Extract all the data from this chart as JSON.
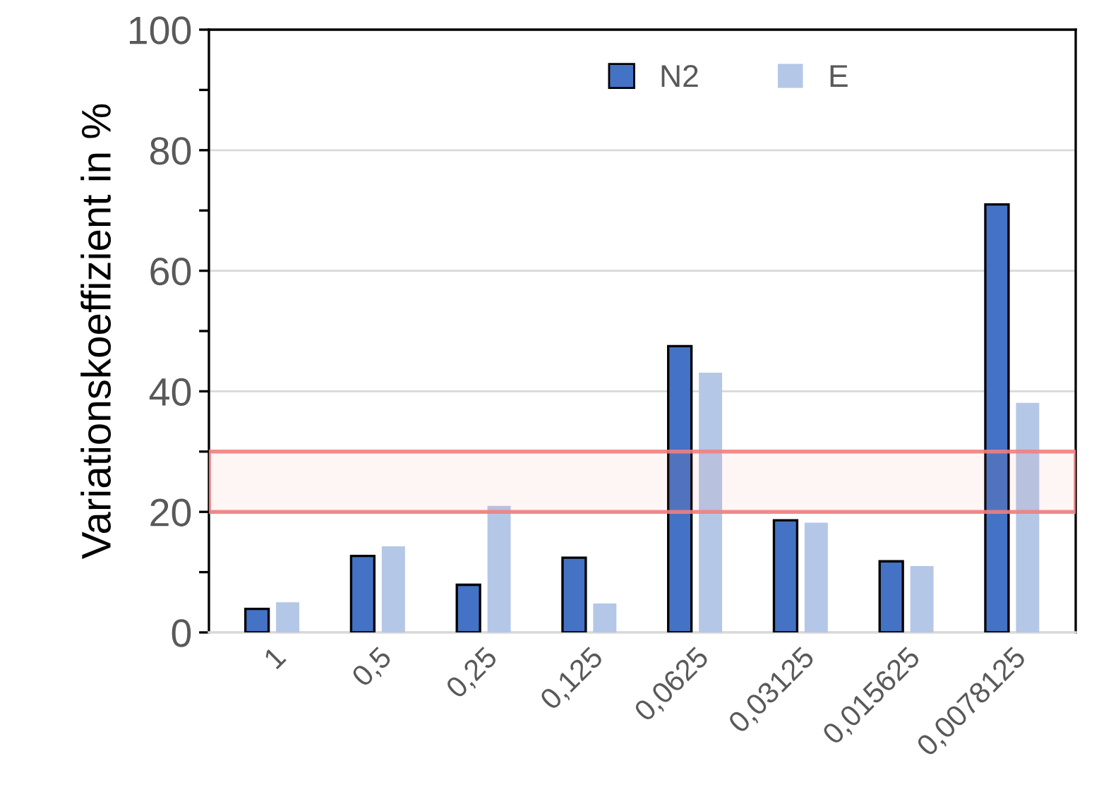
{
  "chart_data": {
    "type": "bar",
    "ylabel": "Variationskoeffizient in %",
    "categories": [
      "1",
      "0,5",
      "0,25",
      "0,125",
      "0,0625",
      "0,03125",
      "0,015625",
      "0,0078125"
    ],
    "series": [
      {
        "name": "N2",
        "color": "#4472c4",
        "values": [
          3.9,
          12.7,
          7.9,
          12.4,
          47.5,
          18.6,
          11.8,
          71.0
        ]
      },
      {
        "name": "E",
        "color": "#b4c7e7",
        "values": [
          5.0,
          14.3,
          21.0,
          4.8,
          43.1,
          18.2,
          11.0,
          38.1
        ]
      }
    ],
    "ylim": [
      0,
      100
    ],
    "yticks": [
      0,
      {
        "value": 10,
        "label": null
      },
      20,
      {
        "value": 30,
        "label": null
      },
      40,
      {
        "value": 50,
        "label": null
      },
      60,
      {
        "value": 70,
        "label": null
      },
      80,
      {
        "value": 90,
        "label": null
      },
      100
    ],
    "grid": "y",
    "legend": "top right",
    "bands": [
      {
        "axis": "y",
        "from": 20,
        "to": 30,
        "color": "#f08080"
      }
    ]
  }
}
